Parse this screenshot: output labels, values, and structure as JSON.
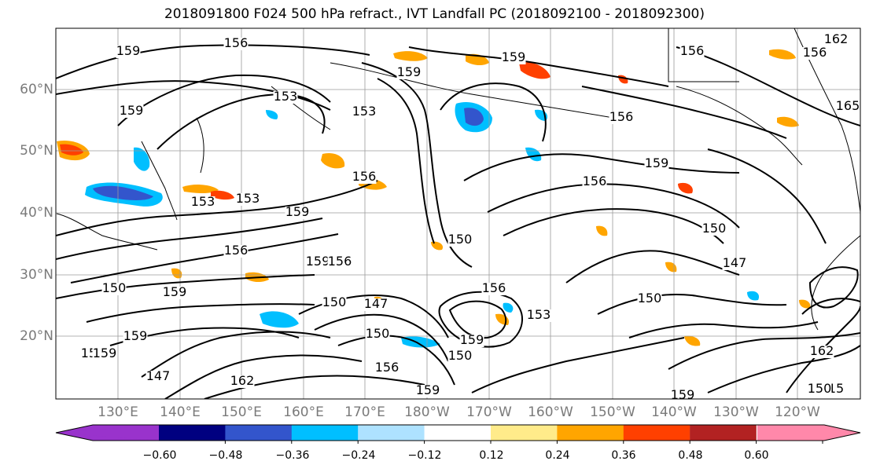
{
  "title": "2018091800 F024 500 hPa refract., IVT Landfall PC (2018092100 - 2018092300)",
  "lat_labels": [
    "60°N",
    "50°N",
    "40°N",
    "30°N",
    "20°N"
  ],
  "lon_labels": [
    "130°E",
    "140°E",
    "150°E",
    "160°E",
    "170°E",
    "180°W",
    "170°W",
    "160°W",
    "150°W",
    "140°W",
    "130°W",
    "120°W"
  ],
  "contour_labels": [
    "159",
    "156",
    "159",
    "153",
    "159",
    "159",
    "159",
    "156",
    "153",
    "153",
    "153",
    "156",
    "159",
    "150",
    "150",
    "150",
    "156",
    "147",
    "150",
    "159",
    "156",
    "159",
    "147",
    "153",
    "156",
    "150",
    "156",
    "150",
    "159",
    "162",
    "159",
    "156",
    "150",
    "147",
    "159",
    "156",
    "159",
    "156",
    "162",
    "165",
    "162",
    "15",
    "156",
    "159",
    "150"
  ],
  "colorbar": {
    "ticks": [
      "−0.60",
      "−0.48",
      "−0.36",
      "−0.24",
      "−0.12",
      "0.12",
      "0.24",
      "0.36",
      "0.48",
      "0.60"
    ],
    "colors": [
      "#9933cc",
      "#000080",
      "#3355cc",
      "#00bfff",
      "#aee2ff",
      "#ffffff",
      "#ffeb8a",
      "#ffa500",
      "#ff4000",
      "#b22222",
      "#ff88aa"
    ]
  }
}
